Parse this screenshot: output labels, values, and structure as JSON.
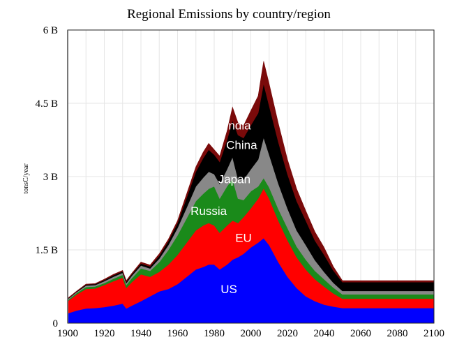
{
  "chart_data": {
    "type": "area",
    "stacked": true,
    "title": "Regional Emissions by country/region",
    "xlabel": "",
    "ylabel": "tonsC/year",
    "xlim": [
      1900,
      2100
    ],
    "ylim": [
      0,
      6000000000
    ],
    "grid": true,
    "x_ticks": [
      1900,
      1920,
      1940,
      1960,
      1980,
      2000,
      2020,
      2040,
      2060,
      2080,
      2100
    ],
    "x_tick_labels": [
      "1900",
      "1920",
      "1940",
      "1960",
      "1980",
      "2000",
      "2020",
      "2040",
      "2060",
      "2080",
      "2100"
    ],
    "y_ticks": [
      0,
      1500000000,
      3000000000,
      4500000000,
      6000000000
    ],
    "y_tick_labels": [
      "0",
      "1.5 B",
      "3 B",
      "4.5 B",
      "6 B"
    ],
    "x": [
      1900,
      1905,
      1910,
      1915,
      1920,
      1925,
      1930,
      1932,
      1935,
      1940,
      1945,
      1950,
      1955,
      1960,
      1965,
      1970,
      1974,
      1977,
      1980,
      1983,
      1987,
      1990,
      1993,
      1996,
      2000,
      2004,
      2007,
      2010,
      2015,
      2020,
      2025,
      2030,
      2035,
      2040,
      2045,
      2050,
      2060,
      2070,
      2080,
      2090,
      2100
    ],
    "series": [
      {
        "name": "US",
        "color": "#0000ff",
        "values": [
          0.2,
          0.26,
          0.3,
          0.31,
          0.33,
          0.36,
          0.4,
          0.3,
          0.36,
          0.45,
          0.55,
          0.65,
          0.7,
          0.8,
          0.95,
          1.1,
          1.15,
          1.2,
          1.2,
          1.1,
          1.2,
          1.3,
          1.35,
          1.42,
          1.55,
          1.65,
          1.74,
          1.6,
          1.25,
          0.95,
          0.72,
          0.55,
          0.45,
          0.38,
          0.34,
          0.31,
          0.31,
          0.31,
          0.31,
          0.31,
          0.31
        ]
      },
      {
        "name": "EU",
        "color": "#ff0000",
        "values": [
          0.25,
          0.33,
          0.4,
          0.4,
          0.45,
          0.5,
          0.53,
          0.42,
          0.48,
          0.55,
          0.4,
          0.4,
          0.5,
          0.6,
          0.7,
          0.8,
          0.85,
          0.85,
          0.8,
          0.75,
          0.8,
          0.8,
          0.7,
          0.75,
          0.8,
          0.9,
          1.02,
          0.95,
          0.85,
          0.75,
          0.63,
          0.55,
          0.45,
          0.37,
          0.27,
          0.19,
          0.19,
          0.19,
          0.19,
          0.19,
          0.19
        ]
      },
      {
        "name": "Russia",
        "color": "#1a8a1a",
        "values": [
          0.02,
          0.03,
          0.04,
          0.04,
          0.04,
          0.05,
          0.06,
          0.06,
          0.08,
          0.12,
          0.12,
          0.2,
          0.3,
          0.4,
          0.5,
          0.6,
          0.65,
          0.7,
          0.8,
          0.7,
          0.8,
          0.85,
          0.5,
          0.35,
          0.35,
          0.25,
          0.21,
          0.23,
          0.24,
          0.25,
          0.22,
          0.2,
          0.17,
          0.15,
          0.12,
          0.09,
          0.09,
          0.09,
          0.09,
          0.09,
          0.09
        ]
      },
      {
        "name": "Japan",
        "color": "#888888",
        "values": [
          0.02,
          0.02,
          0.03,
          0.03,
          0.04,
          0.04,
          0.04,
          0.04,
          0.05,
          0.06,
          0.05,
          0.07,
          0.1,
          0.15,
          0.22,
          0.3,
          0.33,
          0.35,
          0.25,
          0.3,
          0.35,
          0.45,
          0.4,
          0.42,
          0.45,
          0.55,
          0.83,
          0.67,
          0.52,
          0.4,
          0.33,
          0.3,
          0.22,
          0.15,
          0.1,
          0.07,
          0.07,
          0.07,
          0.07,
          0.07,
          0.07
        ]
      },
      {
        "name": "China",
        "color": "#000000",
        "values": [
          0.01,
          0.01,
          0.02,
          0.02,
          0.02,
          0.03,
          0.03,
          0.03,
          0.03,
          0.04,
          0.04,
          0.06,
          0.08,
          0.1,
          0.2,
          0.3,
          0.4,
          0.45,
          0.4,
          0.45,
          0.6,
          0.75,
          0.9,
          0.85,
          0.9,
          0.95,
          1.1,
          1.0,
          0.85,
          0.7,
          0.6,
          0.5,
          0.4,
          0.35,
          0.25,
          0.18,
          0.18,
          0.18,
          0.18,
          0.18,
          0.18
        ]
      },
      {
        "name": "India",
        "color": "#7a0a0a",
        "values": [
          0.01,
          0.01,
          0.01,
          0.01,
          0.02,
          0.02,
          0.02,
          0.02,
          0.02,
          0.03,
          0.03,
          0.04,
          0.04,
          0.05,
          0.08,
          0.1,
          0.12,
          0.13,
          0.1,
          0.12,
          0.18,
          0.27,
          0.25,
          0.25,
          0.3,
          0.35,
          0.46,
          0.45,
          0.38,
          0.3,
          0.25,
          0.2,
          0.18,
          0.15,
          0.08,
          0.03,
          0.03,
          0.03,
          0.03,
          0.03,
          0.03
        ]
      }
    ],
    "value_unit": "billion tonsC/year",
    "annotations": [
      {
        "text": "India",
        "x": 1993,
        "y": 4.05
      },
      {
        "text": "China",
        "x": 1995,
        "y": 3.65
      },
      {
        "text": "Japan",
        "x": 1991,
        "y": 2.95
      },
      {
        "text": "Russia",
        "x": 1977,
        "y": 2.3
      },
      {
        "text": "EU",
        "x": 1996,
        "y": 1.75
      },
      {
        "text": "US",
        "x": 1988,
        "y": 0.7
      }
    ]
  }
}
